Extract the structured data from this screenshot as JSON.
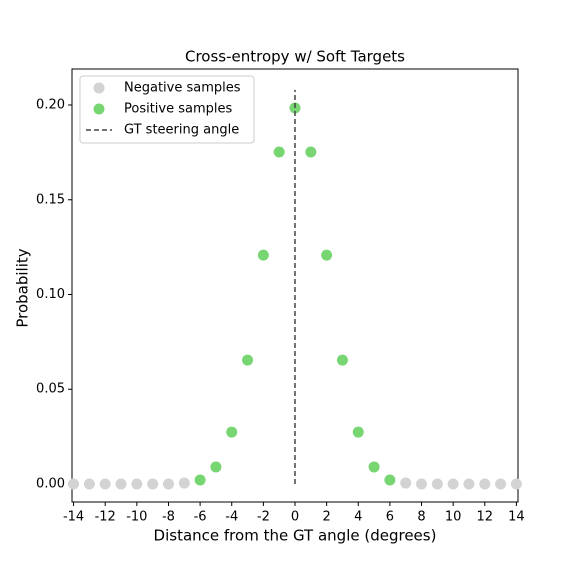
{
  "chart_data": {
    "type": "scatter",
    "title": "Cross-entropy w/ Soft Targets",
    "xlabel": "Distance from the GT angle (degrees)",
    "ylabel": "Probability",
    "xlim": [
      -14.1,
      14.1
    ],
    "ylim": [
      -0.0095,
      0.219
    ],
    "xticks": [
      -14,
      -12,
      -10,
      -8,
      -6,
      -4,
      -2,
      0,
      2,
      4,
      6,
      8,
      10,
      12,
      14
    ],
    "yticks": [
      {
        "value": 0,
        "label": "0.00"
      },
      {
        "value": 0.05,
        "label": "0.05"
      },
      {
        "value": 0.1,
        "label": "0.10"
      },
      {
        "value": 0.15,
        "label": "0.15"
      },
      {
        "value": 0.2,
        "label": "0.20"
      }
    ],
    "legend": "upper left",
    "series": [
      {
        "name": "Negative samples",
        "color": "#d3d3d3",
        "kind": "scatter",
        "x": [
          -14,
          -13,
          -12,
          -11,
          -10,
          -9,
          -8,
          -7,
          7,
          8,
          9,
          10,
          11,
          12,
          13,
          14
        ],
        "values": [
          0,
          0,
          0,
          0,
          0,
          0,
          0,
          0.0005,
          0.0005,
          0,
          0,
          0,
          0,
          0,
          0,
          0
        ]
      },
      {
        "name": "Positive samples",
        "color": "#77d672",
        "kind": "scatter",
        "x": [
          -6,
          -5,
          -4,
          -3,
          -2,
          -1,
          0,
          1,
          2,
          3,
          4,
          5,
          6
        ],
        "values": [
          0.0021,
          0.009,
          0.0274,
          0.0654,
          0.1208,
          0.1752,
          0.1984,
          0.1752,
          0.1208,
          0.0654,
          0.0274,
          0.009,
          0.0021
        ]
      },
      {
        "name": "GT steering angle",
        "color": "#444444",
        "kind": "dashed",
        "x": [
          0,
          0
        ],
        "values": [
          0,
          0.208
        ]
      }
    ]
  }
}
